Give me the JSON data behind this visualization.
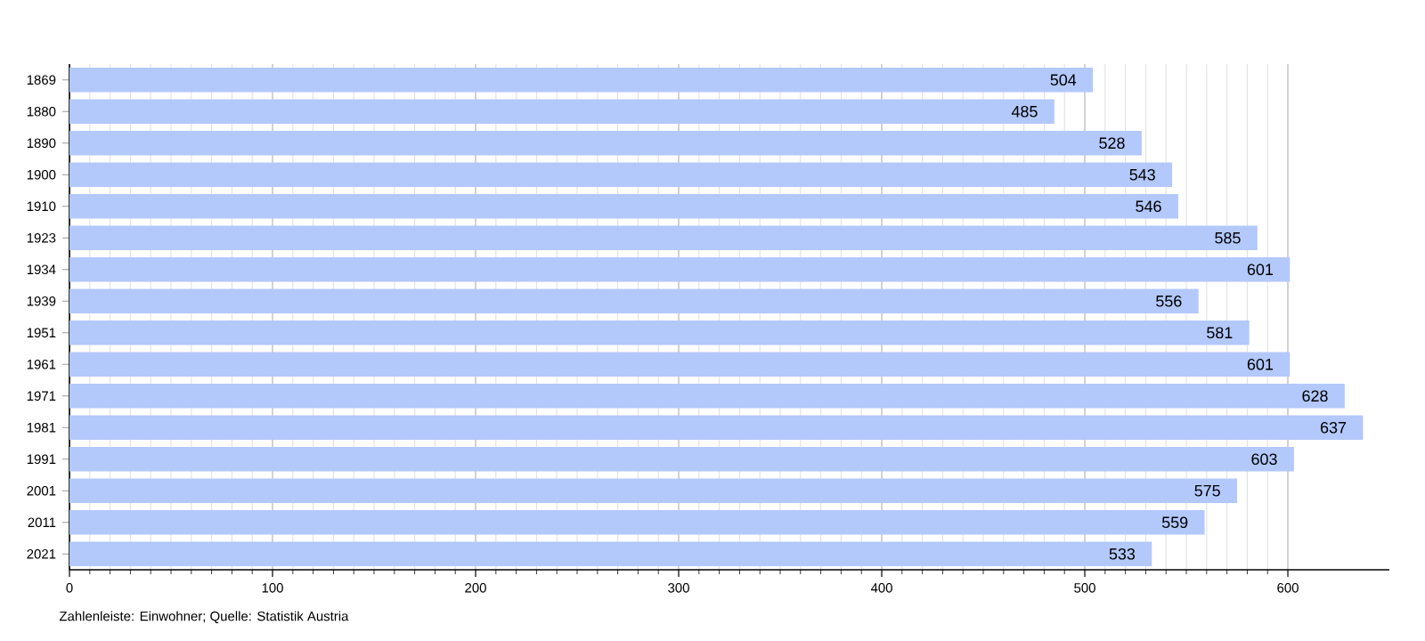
{
  "chart_data": {
    "type": "bar",
    "orientation": "horizontal",
    "categories": [
      "1869",
      "1880",
      "1890",
      "1900",
      "1910",
      "1923",
      "1934",
      "1939",
      "1951",
      "1961",
      "1971",
      "1981",
      "1991",
      "2001",
      "2011",
      "2021"
    ],
    "values": [
      504,
      485,
      528,
      543,
      546,
      585,
      601,
      556,
      581,
      601,
      628,
      637,
      603,
      575,
      559,
      533
    ],
    "color": "#b3c8fb",
    "xlim": [
      0,
      650
    ],
    "xticks": [
      0,
      100,
      200,
      300,
      400,
      500,
      600
    ],
    "grid": "x",
    "data_labels": true,
    "annotations": [
      "Zahlenleiste: Einwohner; Quelle: Statistik Austria"
    ]
  }
}
